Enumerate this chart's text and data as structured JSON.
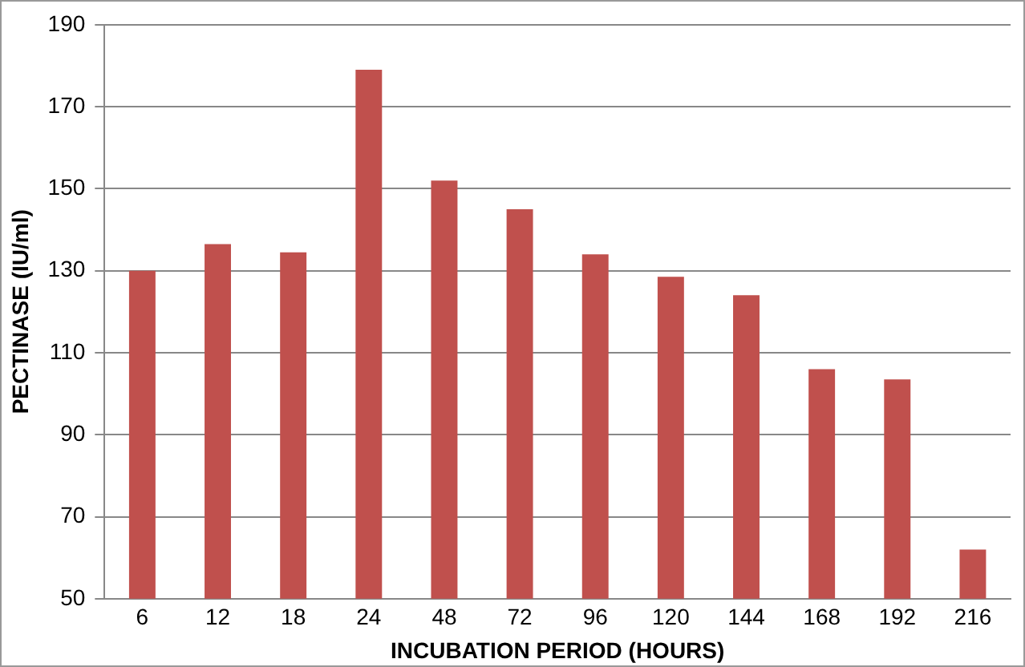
{
  "chart_data": {
    "type": "bar",
    "xlabel": "INCUBATION PERIOD (HOURS)",
    "ylabel": "PECTINASE (IU/ml)",
    "categories": [
      "6",
      "12",
      "18",
      "24",
      "48",
      "72",
      "96",
      "120",
      "144",
      "168",
      "192",
      "216"
    ],
    "values": [
      130,
      136.5,
      134.5,
      179,
      152,
      145,
      134,
      128.5,
      124,
      106,
      103.5,
      62
    ],
    "color": "#c0504d",
    "ylim": [
      50,
      190
    ],
    "yticks": [
      50,
      70,
      90,
      110,
      130,
      150,
      170,
      190
    ],
    "grid": "y",
    "legend": false
  }
}
